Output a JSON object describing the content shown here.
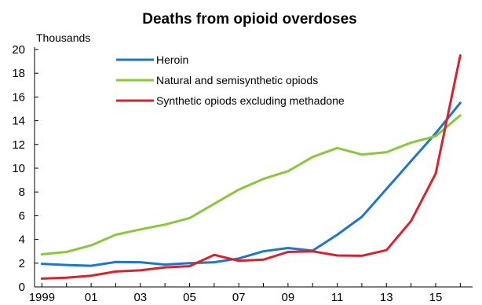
{
  "chart_data": {
    "type": "line",
    "title": "Deaths from opioid overdoses",
    "unit_label": "Thousands",
    "xlabel": "",
    "ylabel": "",
    "grid": false,
    "legend_position": "top-center",
    "x": [
      1999,
      2000,
      2001,
      2002,
      2003,
      2004,
      2005,
      2006,
      2007,
      2008,
      2009,
      2010,
      2011,
      2012,
      2013,
      2014,
      2015,
      2016
    ],
    "xlim": [
      1998.7,
      2016.5
    ],
    "ylim": [
      0,
      20
    ],
    "x_ticks": [
      1999,
      2001,
      2003,
      2005,
      2007,
      2009,
      2011,
      2013,
      2015
    ],
    "x_tick_labels": [
      "1999",
      "01",
      "03",
      "05",
      "07",
      "09",
      "11",
      "13",
      "15"
    ],
    "y_ticks": [
      0,
      2,
      4,
      6,
      8,
      10,
      12,
      14,
      16,
      18,
      20
    ],
    "y_tick_labels": [
      "0",
      "2",
      "4",
      "6",
      "8",
      "10",
      "12",
      "14",
      "16",
      "18",
      "20"
    ],
    "series": [
      {
        "name": "Heroin",
        "color": "#1f77c4",
        "values": [
          1.95,
          1.85,
          1.78,
          2.1,
          2.08,
          1.88,
          2.0,
          2.08,
          2.4,
          3.0,
          3.28,
          3.05,
          4.4,
          5.9,
          8.25,
          10.6,
          12.95,
          15.5
        ]
      },
      {
        "name": "Natural and semisynthetic opiods",
        "color": "#8cc63f",
        "values": [
          2.75,
          2.95,
          3.5,
          4.4,
          4.85,
          5.25,
          5.8,
          7.0,
          8.2,
          9.1,
          9.75,
          10.95,
          11.7,
          11.15,
          11.35,
          12.15,
          12.7,
          14.45
        ]
      },
      {
        "name": "Synthetic opiods excluding methadone",
        "color": "#d8222f",
        "values": [
          0.7,
          0.78,
          0.95,
          1.3,
          1.4,
          1.65,
          1.75,
          2.7,
          2.2,
          2.3,
          2.95,
          3.0,
          2.65,
          2.62,
          3.1,
          5.55,
          9.55,
          19.5
        ]
      }
    ]
  }
}
